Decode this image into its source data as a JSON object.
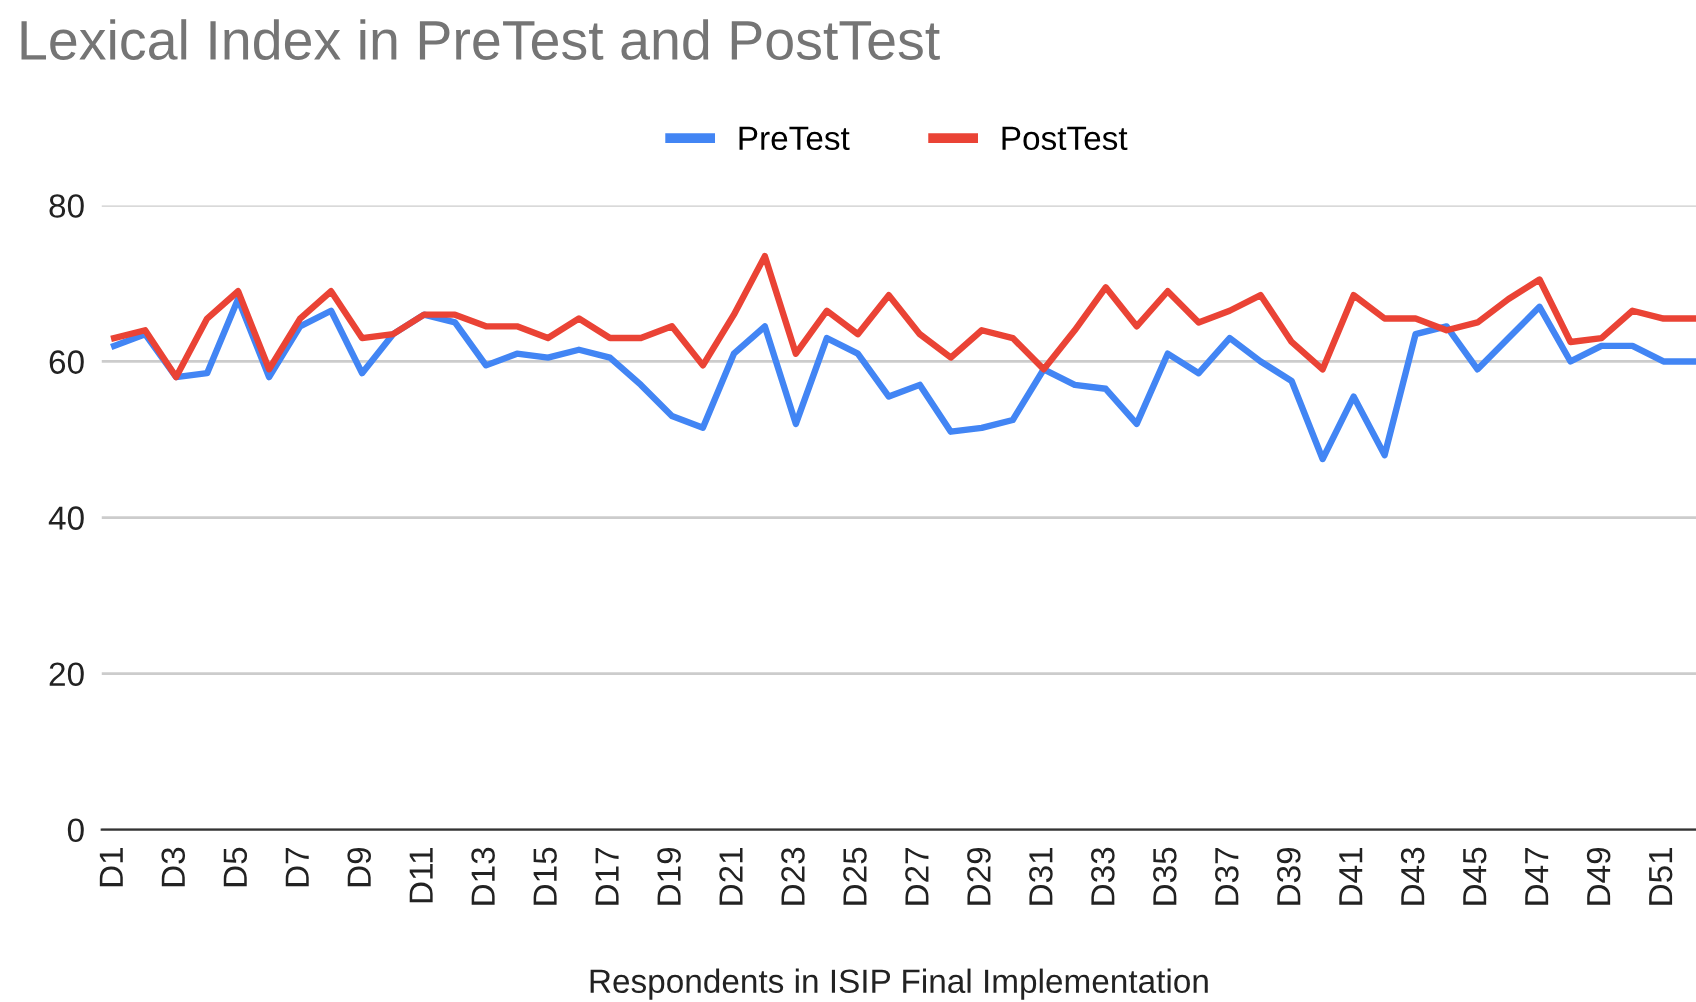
{
  "chart_data": {
    "type": "line",
    "title": "Lexical Index in PreTest and PostTest",
    "xlabel": "Respondents in ISIP Final Implementation",
    "categories": [
      "D1",
      null,
      "D3",
      null,
      "D5",
      null,
      "D7",
      null,
      "D9",
      null,
      "D11",
      null,
      "D13",
      null,
      "D15",
      null,
      "D17",
      null,
      "D19",
      null,
      "D21",
      null,
      "D23",
      null,
      "D25",
      null,
      "D27",
      null,
      "D29",
      null,
      "D31",
      null,
      "D33",
      null,
      "D35",
      null,
      "D37",
      null,
      "D39",
      null,
      "D41",
      null,
      "D43",
      null,
      "D45",
      null,
      "D47",
      null,
      "D49",
      null,
      "D51",
      null
    ],
    "series": [
      {
        "name": "PreTest",
        "color": "#4285f4",
        "values": [
          62,
          63.5,
          58,
          58.5,
          68,
          58,
          64.5,
          66.5,
          58.5,
          63.5,
          66,
          65,
          59.5,
          61,
          60.5,
          61.5,
          60.5,
          57,
          53,
          51.5,
          61,
          64.5,
          52,
          63,
          61,
          55.5,
          57,
          51,
          51.5,
          52.5,
          59,
          57,
          56.5,
          52,
          61,
          58.5,
          63,
          60,
          57.5,
          47.5,
          55.5,
          48,
          63.5,
          64.5,
          59,
          63,
          67,
          60,
          62,
          62,
          60,
          60
        ]
      },
      {
        "name": "PostTest",
        "color": "#ea4335",
        "values": [
          63,
          64,
          58,
          65.5,
          69,
          59,
          65.5,
          69,
          63,
          63.5,
          66,
          66,
          64.5,
          64.5,
          63,
          65.5,
          63,
          63,
          64.5,
          59.5,
          66,
          73.5,
          61,
          66.5,
          63.5,
          68.5,
          63.5,
          60.5,
          64,
          63,
          59,
          64,
          69.5,
          64.5,
          69,
          65,
          66.5,
          68.5,
          62.5,
          59,
          68.5,
          65.5,
          65.5,
          64,
          65,
          68,
          70.5,
          62.5,
          63,
          66.5,
          65.5,
          65.5
        ]
      }
    ],
    "ylim": [
      0,
      80
    ],
    "yticks": [
      0,
      20,
      40,
      60,
      80
    ],
    "grid": "y",
    "legend": "top",
    "marker": "none",
    "line_style": "solid"
  }
}
